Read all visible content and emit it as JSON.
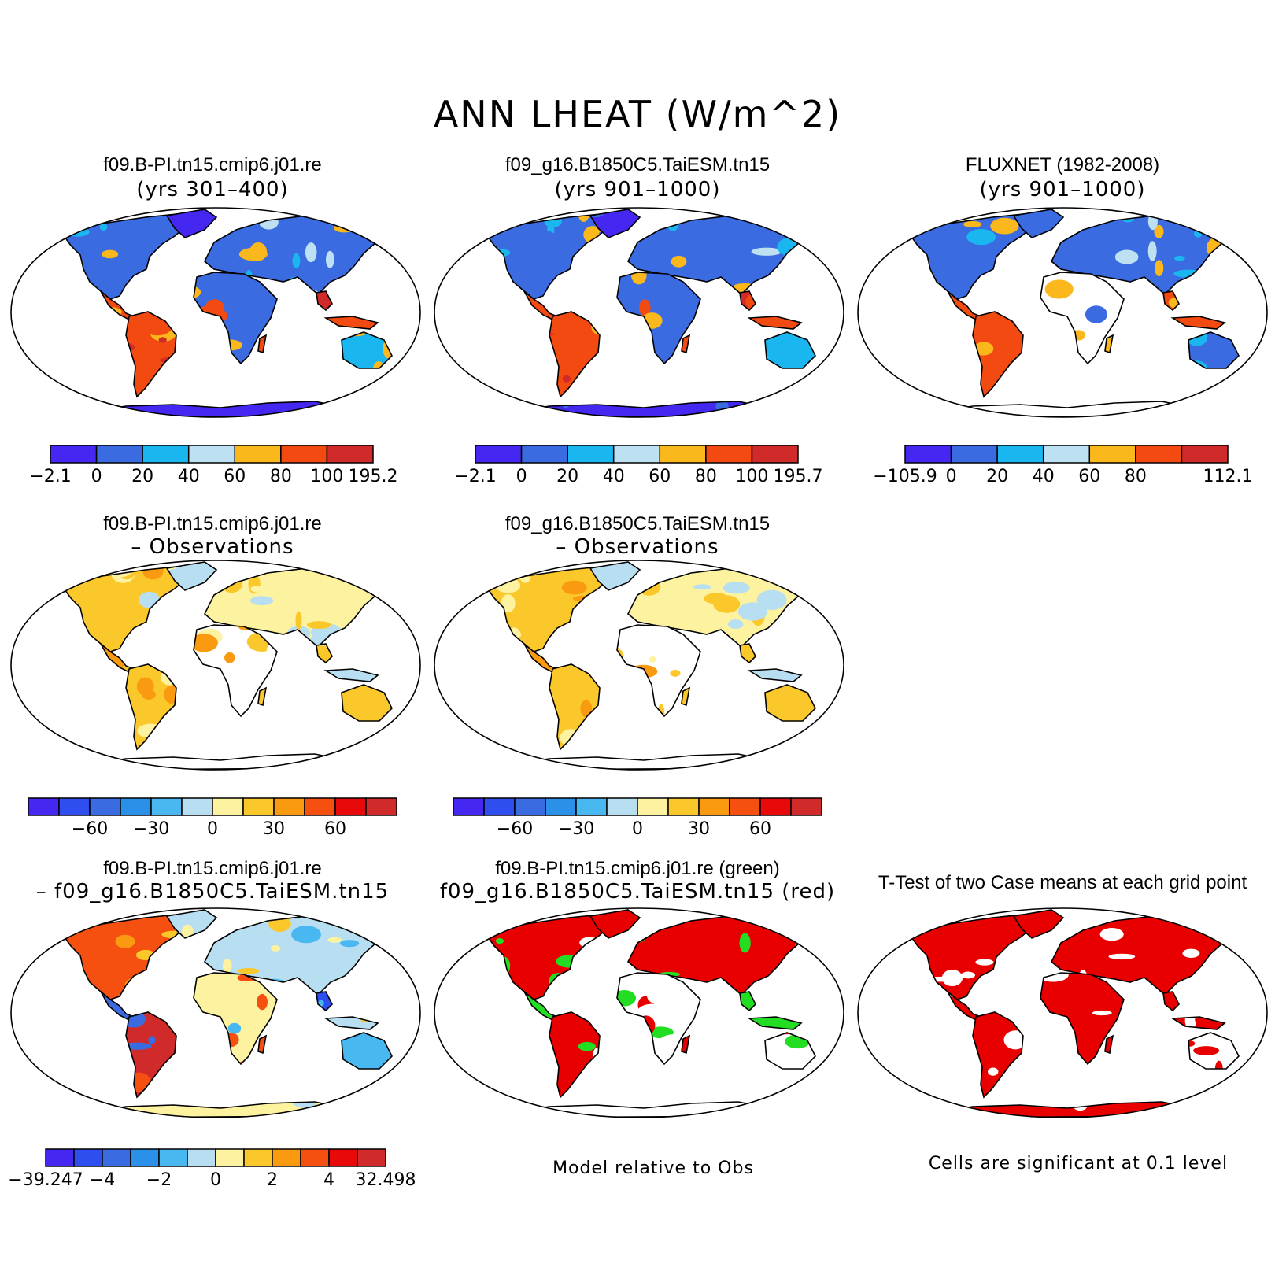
{
  "title": "ANN LHEAT (W/m^2)",
  "panels": [
    {
      "id": "p1",
      "line1": "f09.B-PI.tn15.cmip6.j01.re",
      "line2": "(yrs 301–400)",
      "style": "abs",
      "colorbar": {
        "colors": [
          "#4427f0",
          "#3a6be0",
          "#19b6f0",
          "#bde0f2",
          "#fbb81c",
          "#f24a10",
          "#d12a2a"
        ],
        "labels": [
          "−2.1",
          "0",
          "20",
          "40",
          "60",
          "80",
          "100",
          "195.2"
        ]
      }
    },
    {
      "id": "p2",
      "line1": "f09_g16.B1850C5.TaiESM.tn15",
      "line2": "(yrs 901–1000)",
      "style": "abs",
      "colorbar": {
        "colors": [
          "#4427f0",
          "#3a6be0",
          "#19b6f0",
          "#bde0f2",
          "#fbb81c",
          "#f24a10",
          "#d12a2a"
        ],
        "labels": [
          "−2.1",
          "0",
          "20",
          "40",
          "60",
          "80",
          "100",
          "195.7"
        ]
      }
    },
    {
      "id": "p3",
      "line1": "FLUXNET (1982-2008)",
      "line2": "(yrs 901–1000)",
      "style": "obs",
      "colorbar": {
        "colors": [
          "#4427f0",
          "#3a6be0",
          "#19b6f0",
          "#bde0f2",
          "#fbb81c",
          "#f24a10",
          "#d12a2a"
        ],
        "labels": [
          "−105.9",
          "0",
          "20",
          "40",
          "60",
          "80",
          "",
          "112.1"
        ]
      }
    },
    {
      "id": "p4",
      "line1": "f09.B-PI.tn15.cmip6.j01.re",
      "line2": "– Observations",
      "style": "diff",
      "colorbar": {
        "colors": [
          "#4427f0",
          "#2f4ef0",
          "#3a6be0",
          "#2a90e8",
          "#4ab8f0",
          "#b8def2",
          "#fdf2a0",
          "#fbc82c",
          "#f99a10",
          "#f55010",
          "#e80a0a",
          "#d12a2a"
        ],
        "labels": [
          "−60",
          "−30",
          "0",
          "30",
          "60"
        ]
      }
    },
    {
      "id": "p5",
      "line1": "f09_g16.B1850C5.TaiESM.tn15",
      "line2": "– Observations",
      "style": "diff",
      "colorbar": {
        "colors": [
          "#4427f0",
          "#2f4ef0",
          "#3a6be0",
          "#2a90e8",
          "#4ab8f0",
          "#b8def2",
          "#fdf2a0",
          "#fbc82c",
          "#f99a10",
          "#f55010",
          "#e80a0a",
          "#d12a2a"
        ],
        "labels": [
          "−60",
          "−30",
          "0",
          "30",
          "60"
        ]
      }
    },
    {
      "id": "p6",
      "line1": "f09.B-PI.tn15.cmip6.j01.re",
      "line2": "– f09_g16.B1850C5.TaiESM.tn15",
      "style": "mdiff",
      "colorbar": {
        "colors": [
          "#4427f0",
          "#2f4ef0",
          "#3a6be0",
          "#2a90e8",
          "#4ab8f0",
          "#b8def2",
          "#fdf2a0",
          "#fbc82c",
          "#f99a10",
          "#f55010",
          "#e80a0a",
          "#d12a2a"
        ],
        "labels": [
          "−39.247",
          "−4",
          "−2",
          "0",
          "2",
          "4",
          "32.498"
        ]
      }
    },
    {
      "id": "p7",
      "line1": "f09.B-PI.tn15.cmip6.j01.re (green)",
      "line2": "f09_g16.B1850C5.TaiESM.tn15 (red)",
      "style": "green",
      "footer": "Model relative to Obs"
    },
    {
      "id": "p8",
      "line1": "T-Test of two Case means at each grid point",
      "line2": "",
      "style": "ttest",
      "footer": "Cells are significant at 0.1 level"
    }
  ]
}
